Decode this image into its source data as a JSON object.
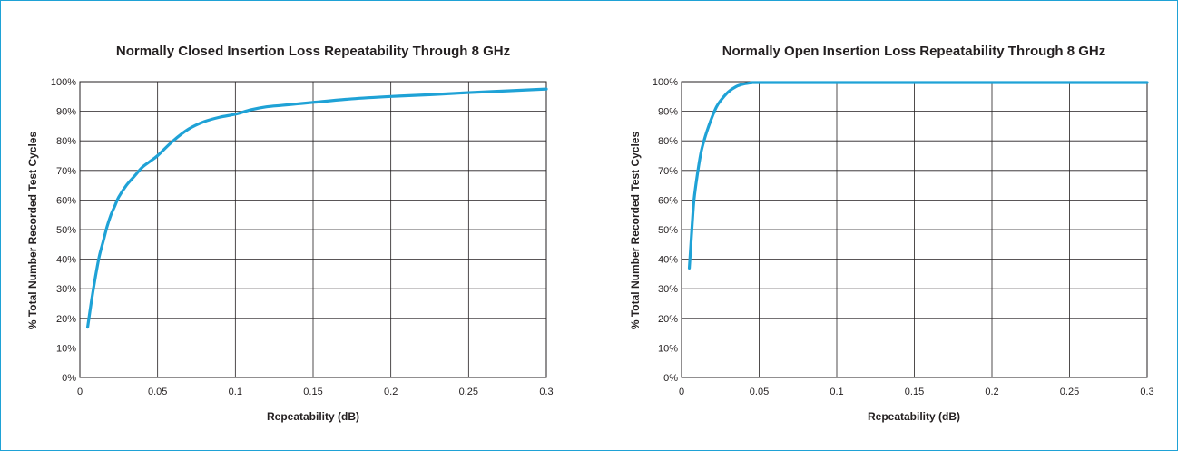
{
  "colors": {
    "frame": "#1fa2d6",
    "line": "#1fa2d6",
    "grid": "#231f20",
    "text": "#231f20"
  },
  "chart_data": [
    {
      "type": "line",
      "title": "Normally Closed Insertion Loss Repeatability Through 8 GHz",
      "xlabel": "Repeatability (dB)",
      "ylabel": "% Total Number Recorded Test Cycles",
      "xlim": [
        0,
        0.3
      ],
      "ylim": [
        0,
        100
      ],
      "x_ticks": [
        "0",
        "0.05",
        "0.1",
        "0.15",
        "0.2",
        "0.25",
        "0.3"
      ],
      "y_ticks": [
        "0%",
        "10%",
        "20%",
        "30%",
        "40%",
        "50%",
        "60%",
        "70%",
        "80%",
        "90%",
        "100%"
      ],
      "grid": true,
      "legend": "none",
      "series": [
        {
          "x": [
            0.005,
            0.0075,
            0.01,
            0.0125,
            0.015,
            0.0175,
            0.02,
            0.0225,
            0.025,
            0.03,
            0.035,
            0.04,
            0.045,
            0.05,
            0.06,
            0.07,
            0.08,
            0.09,
            0.1,
            0.11,
            0.12,
            0.13,
            0.14,
            0.15,
            0.175,
            0.2,
            0.225,
            0.25,
            0.275,
            0.3
          ],
          "y": [
            17,
            26,
            34,
            41,
            46,
            51,
            55,
            58,
            61,
            65,
            68,
            71,
            73,
            75,
            80,
            84,
            86.5,
            88,
            89,
            90.5,
            91.5,
            92,
            92.5,
            93,
            94.2,
            95,
            95.6,
            96.3,
            96.9,
            97.5
          ]
        }
      ]
    },
    {
      "type": "line",
      "title": "Normally Open Insertion Loss Repeatability Through 8 GHz",
      "xlabel": "Repeatability (dB)",
      "ylabel": "% Total Number Recorded Test Cycles",
      "xlim": [
        0,
        0.3
      ],
      "ylim": [
        0,
        100
      ],
      "x_ticks": [
        "0",
        "0.05",
        "0.1",
        "0.15",
        "0.2",
        "0.25",
        "0.3"
      ],
      "y_ticks": [
        "0%",
        "10%",
        "20%",
        "30%",
        "40%",
        "50%",
        "60%",
        "70%",
        "80%",
        "90%",
        "100%"
      ],
      "grid": true,
      "legend": "none",
      "series": [
        {
          "x": [
            0.005,
            0.006,
            0.007,
            0.008,
            0.01,
            0.0125,
            0.015,
            0.0175,
            0.02,
            0.0225,
            0.025,
            0.03,
            0.035,
            0.04,
            0.045,
            0.05,
            0.1,
            0.15,
            0.2,
            0.25,
            0.3
          ],
          "y": [
            37,
            45,
            53,
            60,
            68,
            76,
            81,
            85,
            88.5,
            91.5,
            93.5,
            96.5,
            98.3,
            99.2,
            99.6,
            99.7,
            99.7,
            99.7,
            99.7,
            99.7,
            99.7
          ]
        }
      ]
    }
  ]
}
